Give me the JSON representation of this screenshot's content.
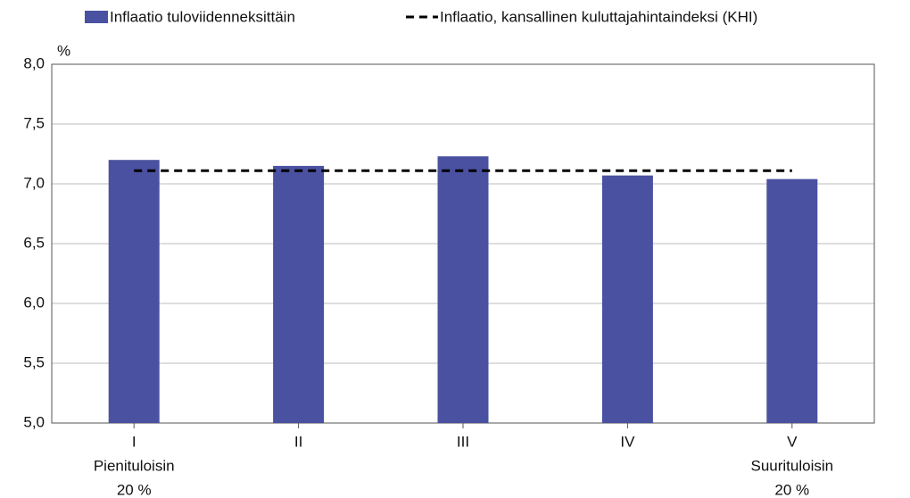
{
  "chart_data": {
    "type": "bar",
    "y_unit": "%",
    "categories": [
      [
        "I",
        "Pienituloisin",
        "20 %"
      ],
      [
        "II"
      ],
      [
        "III"
      ],
      [
        "IV"
      ],
      [
        "V",
        "Suurituloisin",
        "20 %"
      ]
    ],
    "series": [
      {
        "name": "Inflaatio tuloviidenneksittäin",
        "type": "bar",
        "color": "#4a51a0",
        "values": [
          7.2,
          7.15,
          7.23,
          7.07,
          7.04
        ]
      },
      {
        "name": "Inflaatio, kansallinen kuluttajahintaindeksi (KHI)",
        "type": "line",
        "color": "#000000",
        "dashed": true,
        "values": [
          7.11,
          7.11,
          7.11,
          7.11,
          7.11
        ]
      }
    ],
    "ylim": [
      5,
      8
    ],
    "yticks": [
      {
        "value": 5,
        "label": "5,0"
      },
      {
        "value": 5.5,
        "label": "5,5"
      },
      {
        "value": 6,
        "label": "6,0"
      },
      {
        "value": 6.5,
        "label": "6,5"
      },
      {
        "value": 7,
        "label": "7,0"
      },
      {
        "value": 7.5,
        "label": "7,5"
      },
      {
        "value": 8,
        "label": "8,0"
      }
    ],
    "grid": true
  }
}
